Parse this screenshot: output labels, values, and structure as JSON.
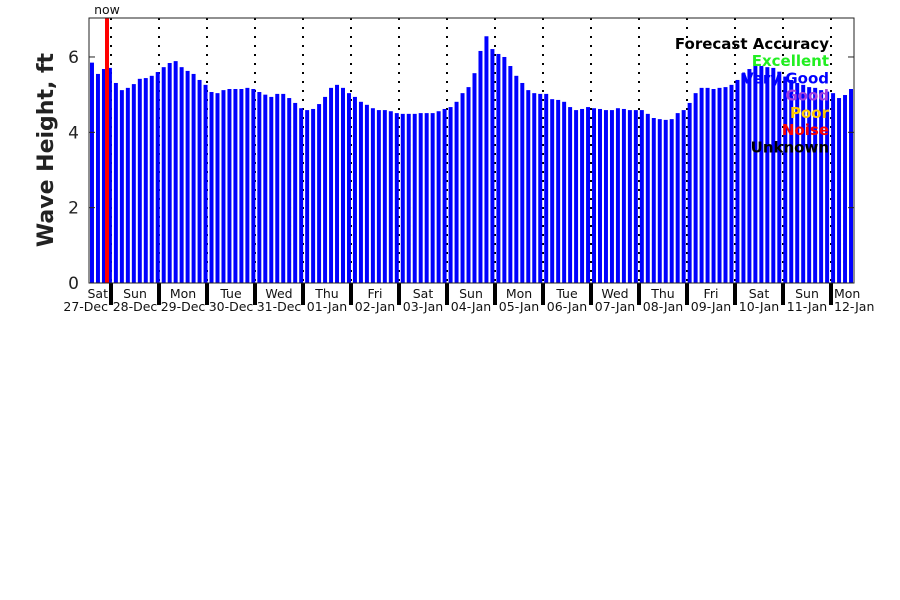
{
  "chart_data": {
    "type": "bar",
    "title": "",
    "xlabel": "",
    "ylabel": "Wave Height, ft",
    "ylim": [
      0,
      7
    ],
    "yticks": [
      "0",
      "2",
      "4",
      "6"
    ],
    "grid": "dotted vertical lines at day boundaries",
    "now_marker_label": "now",
    "bar_color": "#0000ff",
    "now_color": "#ff0000",
    "day_labels": [
      {
        "day": "Sat",
        "date": "27-Dec"
      },
      {
        "day": "Sun",
        "date": "28-Dec"
      },
      {
        "day": "Mon",
        "date": "29-Dec"
      },
      {
        "day": "Tue",
        "date": "30-Dec"
      },
      {
        "day": "Wed",
        "date": "31-Dec"
      },
      {
        "day": "Thu",
        "date": "01-Jan"
      },
      {
        "day": "Fri",
        "date": "02-Jan"
      },
      {
        "day": "Sat",
        "date": "03-Jan"
      },
      {
        "day": "Sun",
        "date": "04-Jan"
      },
      {
        "day": "Mon",
        "date": "05-Jan"
      },
      {
        "day": "Tue",
        "date": "06-Jan"
      },
      {
        "day": "Wed",
        "date": "07-Jan"
      },
      {
        "day": "Thu",
        "date": "08-Jan"
      },
      {
        "day": "Fri",
        "date": "09-Jan"
      },
      {
        "day": "Sat",
        "date": "10-Jan"
      },
      {
        "day": "Sun",
        "date": "11-Jan"
      },
      {
        "day": "Mon",
        "date": "12-Jan"
      }
    ],
    "values": [
      5.85,
      5.55,
      5.68,
      5.71,
      5.31,
      5.12,
      5.18,
      5.28,
      5.42,
      5.44,
      5.5,
      5.6,
      5.73,
      5.84,
      5.89,
      5.73,
      5.63,
      5.55,
      5.39,
      5.26,
      5.07,
      5.04,
      5.12,
      5.15,
      5.15,
      5.15,
      5.18,
      5.15,
      5.07,
      5.0,
      4.94,
      5.02,
      5.02,
      4.91,
      4.78,
      4.64,
      4.59,
      4.62,
      4.75,
      4.94,
      5.18,
      5.26,
      5.18,
      5.04,
      4.94,
      4.81,
      4.73,
      4.64,
      4.59,
      4.59,
      4.56,
      4.51,
      4.49,
      4.49,
      4.49,
      4.51,
      4.51,
      4.51,
      4.56,
      4.62,
      4.67,
      4.81,
      5.04,
      5.2,
      5.57,
      6.16,
      6.55,
      6.21,
      6.08,
      6.0,
      5.76,
      5.5,
      5.31,
      5.12,
      5.04,
      5.02,
      5.02,
      4.88,
      4.86,
      4.81,
      4.67,
      4.59,
      4.62,
      4.67,
      4.64,
      4.62,
      4.59,
      4.59,
      4.64,
      4.62,
      4.59,
      4.59,
      4.59,
      4.49,
      4.38,
      4.35,
      4.33,
      4.35,
      4.51,
      4.59,
      4.78,
      5.04,
      5.18,
      5.18,
      5.15,
      5.18,
      5.2,
      5.26,
      5.39,
      5.57,
      5.68,
      5.76,
      5.76,
      5.73,
      5.71,
      5.61,
      5.48,
      5.39,
      5.31,
      5.26,
      5.2,
      5.18,
      5.12,
      5.08,
      5.04,
      4.91,
      4.99,
      5.15
    ],
    "legend": {
      "title": "Forecast Accuracy",
      "placement": "top-right",
      "entries": [
        {
          "label": "Excellent",
          "color": "#22ee22"
        },
        {
          "label": "Very Good",
          "color": "#0000ff"
        },
        {
          "label": "Good",
          "color": "#a040e0"
        },
        {
          "label": "Poor",
          "color": "#ffcc00"
        },
        {
          "label": "Noise",
          "color": "#ff0000"
        },
        {
          "label": "Unknown",
          "color": "#000000"
        }
      ]
    }
  }
}
